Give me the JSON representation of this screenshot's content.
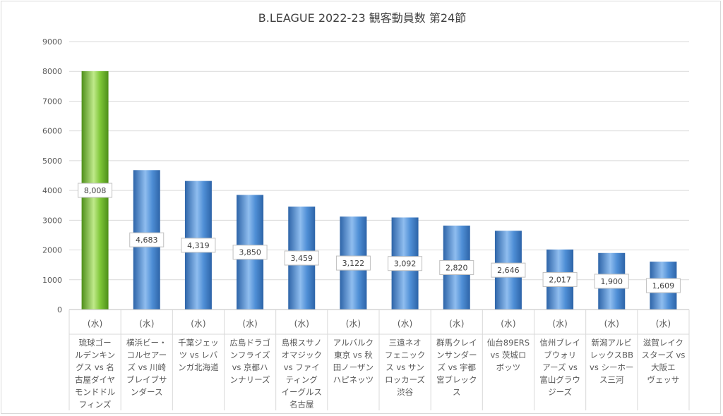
{
  "chart_data": {
    "type": "bar",
    "title": "B.LEAGUE 2022-23 観客動員数 第24節",
    "ylim": [
      0,
      9000
    ],
    "yticks": [
      0,
      1000,
      2000,
      3000,
      4000,
      5000,
      6000,
      7000,
      8000,
      9000
    ],
    "grid": true,
    "categories": [
      {
        "day": "(水)",
        "lines": [
          "琉球ゴー",
          "ルデンキン",
          "グス vs 名",
          "古屋ダイヤ",
          "モンドドル",
          "フィンズ"
        ]
      },
      {
        "day": "(水)",
        "lines": [
          "横浜ビー・",
          "コルセアー",
          "ズ vs 川崎",
          "ブレイブサ",
          "ンダース"
        ]
      },
      {
        "day": "(水)",
        "lines": [
          "千葉ジェッ",
          "ツ vs レバ",
          "ンガ北海道"
        ]
      },
      {
        "day": "(水)",
        "lines": [
          "広島ドラゴ",
          "ンフライズ",
          "vs 京都ハ",
          "ンナリーズ"
        ]
      },
      {
        "day": "(水)",
        "lines": [
          "島根スサノ",
          "オマジック",
          "vs ファイ",
          "ティング",
          "イーグルス",
          "名古屋"
        ]
      },
      {
        "day": "(水)",
        "lines": [
          "アルバルク",
          "東京 vs 秋",
          "田ノーザン",
          "ハピネッツ"
        ]
      },
      {
        "day": "(水)",
        "lines": [
          "三遠ネオ",
          "フェニック",
          "ス vs サン",
          "ロッカーズ",
          "渋谷"
        ]
      },
      {
        "day": "(水)",
        "lines": [
          "群馬クレイ",
          "ンサンダー",
          "ズ vs 宇都",
          "宮ブレック",
          "ス"
        ]
      },
      {
        "day": "(水)",
        "lines": [
          "仙台89ERS",
          "vs 茨城ロ",
          "ボッツ"
        ]
      },
      {
        "day": "(水)",
        "lines": [
          "信州ブレイ",
          "ブウォリ",
          "アーズ vs",
          "富山グラウ",
          "ジーズ"
        ]
      },
      {
        "day": "(水)",
        "lines": [
          "新潟アルビ",
          "レックスBB",
          "vs シーホー",
          "ス三河"
        ]
      },
      {
        "day": "(水)",
        "lines": [
          "滋賀レイク",
          "スターズ vs",
          "大阪エ",
          "ヴェッサ"
        ]
      }
    ],
    "values": [
      8008,
      4683,
      4319,
      3850,
      3459,
      3122,
      3092,
      2820,
      2646,
      2017,
      1900,
      1609
    ],
    "value_labels": [
      "8,008",
      "4,683",
      "4,319",
      "3,850",
      "3,459",
      "3,122",
      "3,092",
      "2,820",
      "2,646",
      "2,017",
      "1,900",
      "1,609"
    ],
    "highlight_index": 0,
    "colors": {
      "bar": "#4f8fd6",
      "bar_dark": "#2d64a8",
      "bar_light": "#8fbdef",
      "highlight": "#7cc535",
      "highlight_dark": "#4e8f1a",
      "highlight_light": "#bfe98a",
      "grid": "#d9d9d9",
      "text": "#595959",
      "title": "#404040"
    }
  }
}
